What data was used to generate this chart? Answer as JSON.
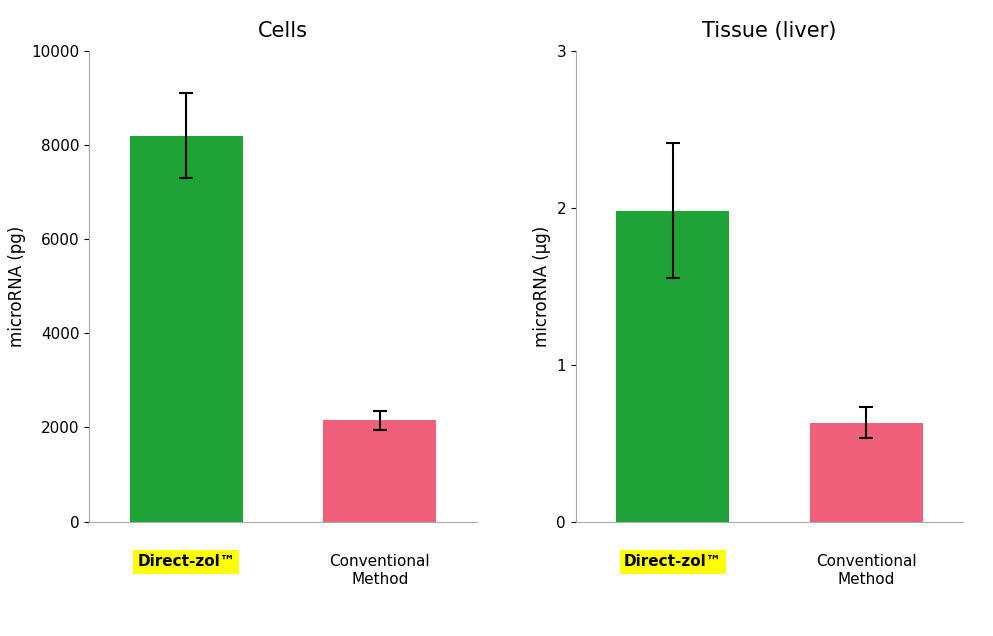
{
  "cells": {
    "title": "Cells",
    "ylabel": "microRNA (pg)",
    "categories": [
      "Direct-zol™",
      "Conventional\nMethod"
    ],
    "values": [
      8200,
      2150
    ],
    "errors": [
      900,
      200
    ],
    "bar_colors": [
      "#1ea336",
      "#f0607a"
    ],
    "ylim": [
      0,
      10000
    ],
    "yticks": [
      0,
      2000,
      4000,
      6000,
      8000,
      10000
    ]
  },
  "tissue": {
    "title": "Tissue (liver)",
    "ylabel": "microRNA (μg)",
    "categories": [
      "Direct-zol™",
      "Conventional\nMethod"
    ],
    "values": [
      1.98,
      0.63
    ],
    "errors": [
      0.43,
      0.1
    ],
    "bar_colors": [
      "#1ea336",
      "#f0607a"
    ],
    "ylim": [
      0,
      3
    ],
    "yticks": [
      0,
      1,
      2,
      3
    ]
  },
  "label_highlight_color": "#ffff00",
  "label_highlight_text_color": "#000000",
  "background_color": "#ffffff",
  "bar_width": 0.35,
  "title_fontsize": 15,
  "title_fontweight": "normal",
  "ylabel_fontsize": 12,
  "tick_fontsize": 11,
  "label_fontsize": 11,
  "x_positions": [
    0.3,
    0.9
  ]
}
